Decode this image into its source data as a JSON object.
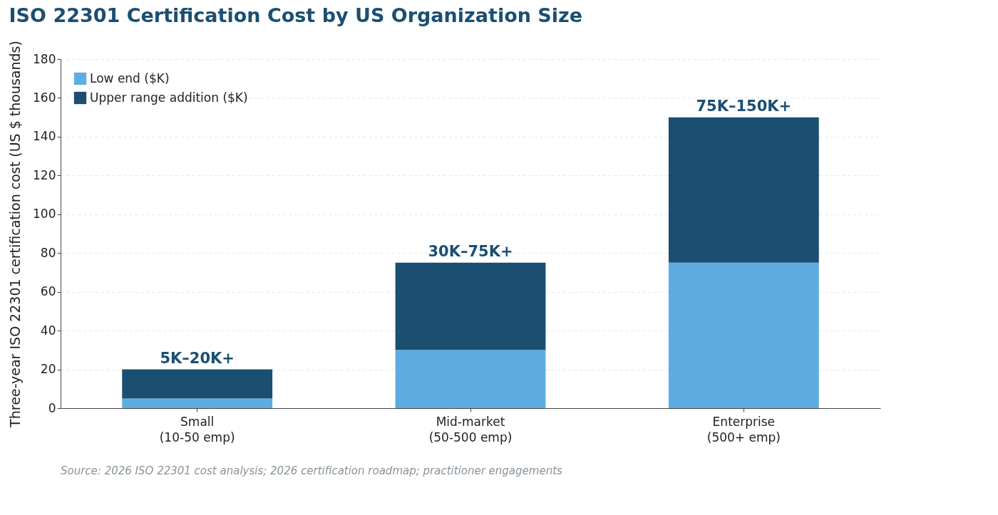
{
  "chart_data": {
    "type": "bar",
    "title": "ISO 22301 Certification Cost by US Organization Size",
    "ylabel": "Three-year ISO 22301 certification cost (US $ thousands)",
    "categories": [
      "Small\n(10-50 emp)",
      "Mid-market\n(50-500 emp)",
      "Enterprise\n(500+ emp)"
    ],
    "series": [
      {
        "name": "Low end ($K)",
        "color": "#5dade2",
        "values": [
          5,
          30,
          75
        ]
      },
      {
        "name": "Upper range addition ($K)",
        "color": "#1b4f72",
        "values": [
          15,
          45,
          75
        ]
      }
    ],
    "stacked": true,
    "ylim": [
      0,
      180
    ],
    "yticks": [
      0,
      20,
      40,
      60,
      80,
      100,
      120,
      140,
      160,
      180
    ],
    "grid": "y",
    "legend": "top left",
    "totals": [
      "5K–20K+",
      "30K–75K+",
      "75K–150K+"
    ],
    "annotations": [
      "Source: 2026 ISO 22301 cost analysis; 2026 certification roadmap; practitioner engagements"
    ]
  }
}
